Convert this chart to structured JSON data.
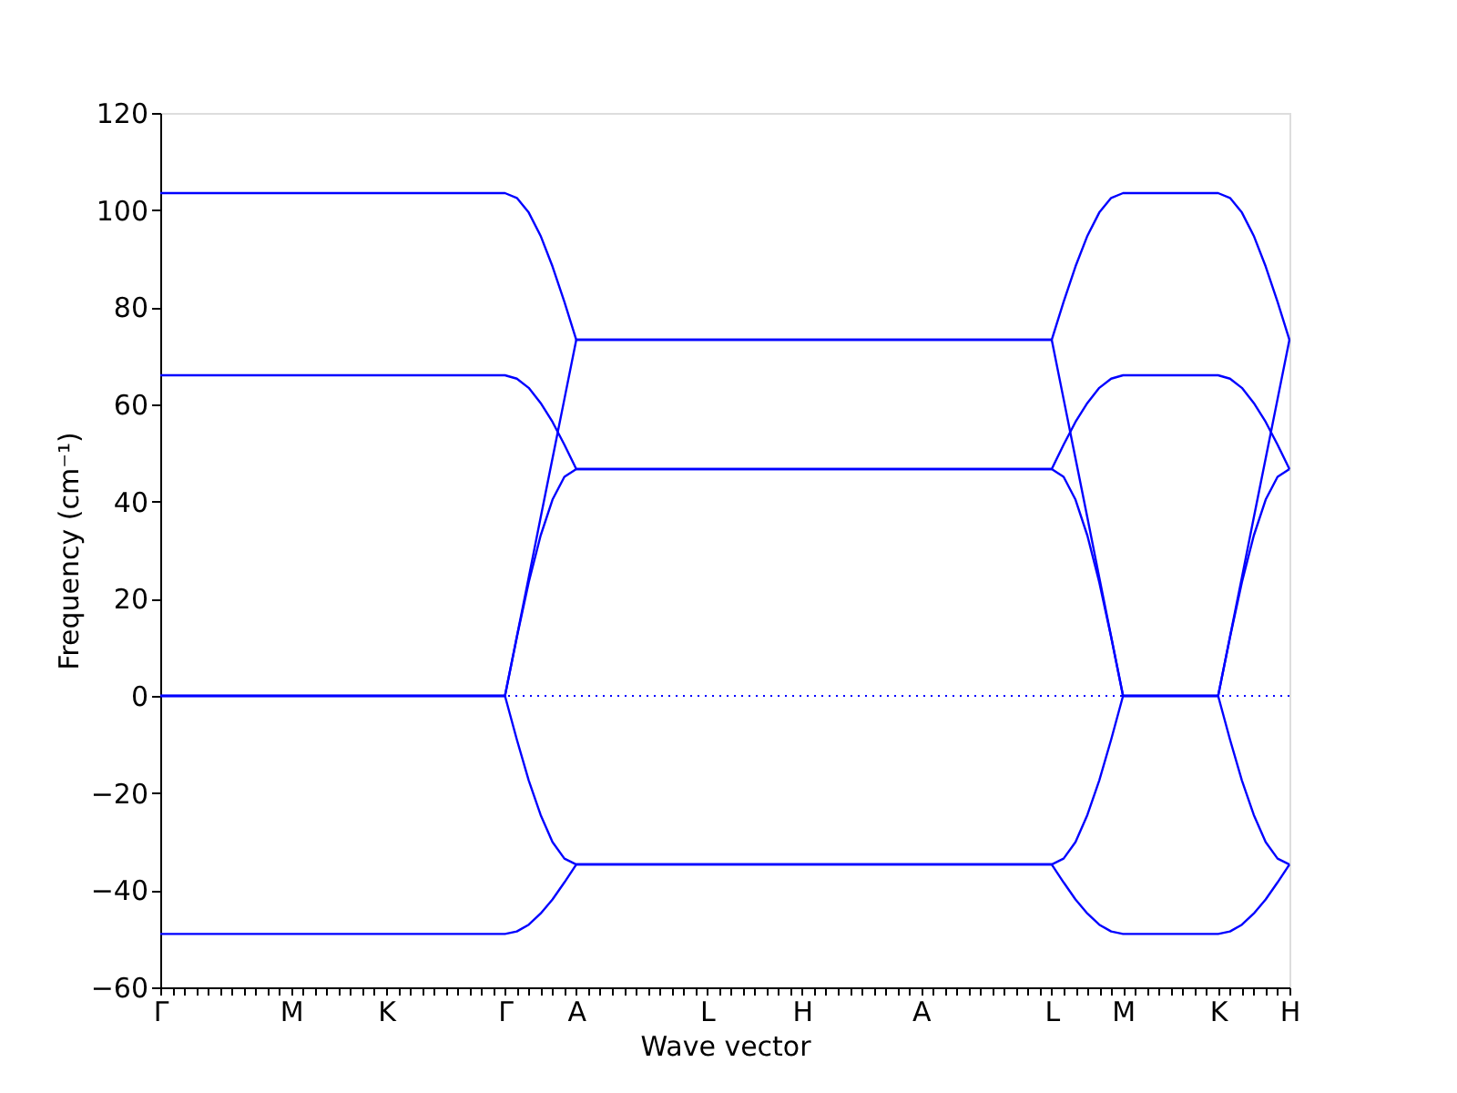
{
  "chart_data": {
    "type": "line",
    "xlabel": "Wave vector",
    "ylabel": "Frequency (cm⁻¹)",
    "ylim": [
      -60,
      120
    ],
    "yticks": [
      -60,
      -40,
      -20,
      0,
      20,
      40,
      60,
      80,
      100,
      120
    ],
    "categories": [
      "Γ",
      null,
      null,
      null,
      null,
      null,
      null,
      null,
      null,
      null,
      null,
      "M",
      null,
      null,
      null,
      null,
      null,
      null,
      null,
      "K",
      null,
      null,
      null,
      null,
      null,
      null,
      null,
      null,
      null,
      "Γ",
      null,
      null,
      null,
      null,
      null,
      "A",
      null,
      null,
      null,
      null,
      null,
      null,
      null,
      null,
      null,
      null,
      "L",
      null,
      null,
      null,
      null,
      null,
      null,
      null,
      "H",
      null,
      null,
      null,
      null,
      null,
      null,
      null,
      null,
      null,
      "A",
      null,
      null,
      null,
      null,
      null,
      null,
      null,
      null,
      null,
      null,
      "L",
      null,
      null,
      null,
      null,
      null,
      "M",
      null,
      null,
      null,
      null,
      null,
      null,
      null,
      "K",
      null,
      null,
      null,
      null,
      null,
      "H"
    ],
    "series": [
      {
        "color": "#0000ff",
        "values": [
          103.5,
          103.5,
          103.5,
          103.5,
          103.5,
          103.5,
          103.5,
          103.5,
          103.5,
          103.5,
          103.5,
          103.5,
          103.5,
          103.5,
          103.5,
          103.5,
          103.5,
          103.5,
          103.5,
          103.5,
          103.5,
          103.5,
          103.5,
          103.5,
          103.5,
          103.5,
          103.5,
          103.5,
          103.5,
          103.5,
          102.5,
          99.5,
          94.7,
          88.4,
          81.1,
          73.3,
          73.3,
          73.3,
          73.3,
          73.3,
          73.3,
          73.3,
          73.3,
          73.3,
          73.3,
          73.3,
          73.3,
          73.3,
          73.3,
          73.3,
          73.3,
          73.3,
          73.3,
          73.3,
          73.3,
          73.3,
          73.3,
          73.3,
          73.3,
          73.3,
          73.3,
          73.3,
          73.3,
          73.3,
          73.3,
          73.3,
          73.3,
          73.3,
          73.3,
          73.3,
          73.3,
          73.3,
          73.3,
          73.3,
          73.3,
          73.3,
          81.1,
          88.4,
          94.7,
          99.5,
          102.5,
          103.5,
          103.5,
          103.5,
          103.5,
          103.5,
          103.5,
          103.5,
          103.5,
          103.5,
          102.5,
          99.5,
          94.7,
          88.4,
          81.1,
          73.3
        ]
      },
      {
        "color": "#0000ff",
        "values": [
          66,
          66,
          66,
          66,
          66,
          66,
          66,
          66,
          66,
          66,
          66,
          66,
          66,
          66,
          66,
          66,
          66,
          66,
          66,
          66,
          66,
          66,
          66,
          66,
          66,
          66,
          66,
          66,
          66,
          66,
          65.3,
          63.4,
          60.3,
          56.4,
          51.7,
          46.7,
          46.7,
          46.7,
          46.7,
          46.7,
          46.7,
          46.7,
          46.7,
          46.7,
          46.7,
          46.7,
          46.7,
          46.7,
          46.7,
          46.7,
          46.7,
          46.7,
          46.7,
          46.7,
          46.7,
          46.7,
          46.7,
          46.7,
          46.7,
          46.7,
          46.7,
          46.7,
          46.7,
          46.7,
          46.7,
          46.7,
          46.7,
          46.7,
          46.7,
          46.7,
          46.7,
          46.7,
          46.7,
          46.7,
          46.7,
          46.7,
          51.7,
          56.4,
          60.3,
          63.4,
          65.3,
          66,
          66,
          66,
          66,
          66,
          66,
          66,
          66,
          66,
          65.3,
          63.4,
          60.3,
          56.4,
          51.7,
          46.7
        ]
      },
      {
        "color": "#0000ff",
        "values": [
          0,
          0,
          0,
          0,
          0,
          0,
          0,
          0,
          0,
          0,
          0,
          0,
          0,
          0,
          0,
          0,
          0,
          0,
          0,
          0,
          0,
          0,
          0,
          0,
          0,
          0,
          0,
          0,
          0,
          0,
          12.2,
          24.4,
          36.7,
          48.9,
          61.1,
          73.3,
          73.3,
          73.3,
          73.3,
          73.3,
          73.3,
          73.3,
          73.3,
          73.3,
          73.3,
          73.3,
          73.3,
          73.3,
          73.3,
          73.3,
          73.3,
          73.3,
          73.3,
          73.3,
          73.3,
          73.3,
          73.3,
          73.3,
          73.3,
          73.3,
          73.3,
          73.3,
          73.3,
          73.3,
          73.3,
          73.3,
          73.3,
          73.3,
          73.3,
          73.3,
          73.3,
          73.3,
          73.3,
          73.3,
          73.3,
          73.3,
          61.1,
          48.9,
          36.7,
          24.4,
          12.2,
          0,
          0,
          0,
          0,
          0,
          0,
          0,
          0,
          0,
          12.2,
          24.4,
          36.7,
          48.9,
          61.1,
          73.3
        ]
      },
      {
        "color": "#0000ff",
        "values": [
          0,
          0,
          0,
          0,
          0,
          0,
          0,
          0,
          0,
          0,
          0,
          0,
          0,
          0,
          0,
          0,
          0,
          0,
          0,
          0,
          0,
          0,
          0,
          0,
          0,
          0,
          0,
          0,
          0,
          0,
          12.1,
          23.4,
          33.0,
          40.4,
          45.1,
          46.7,
          46.7,
          46.7,
          46.7,
          46.7,
          46.7,
          46.7,
          46.7,
          46.7,
          46.7,
          46.7,
          46.7,
          46.7,
          46.7,
          46.7,
          46.7,
          46.7,
          46.7,
          46.7,
          46.7,
          46.7,
          46.7,
          46.7,
          46.7,
          46.7,
          46.7,
          46.7,
          46.7,
          46.7,
          46.7,
          46.7,
          46.7,
          46.7,
          46.7,
          46.7,
          46.7,
          46.7,
          46.7,
          46.7,
          46.7,
          46.7,
          45.1,
          40.4,
          33.0,
          23.4,
          12.1,
          0,
          0,
          0,
          0,
          0,
          0,
          0,
          0,
          0,
          12.1,
          23.4,
          33.0,
          40.4,
          45.1,
          46.7
        ]
      },
      {
        "color": "#0000ff",
        "values": [
          0,
          0,
          0,
          0,
          0,
          0,
          0,
          0,
          0,
          0,
          0,
          0,
          0,
          0,
          0,
          0,
          0,
          0,
          0,
          0,
          0,
          0,
          0,
          0,
          0,
          0,
          0,
          0,
          0,
          0,
          -9.0,
          -17.4,
          -24.5,
          -30.1,
          -33.5,
          -34.7,
          -34.7,
          -34.7,
          -34.7,
          -34.7,
          -34.7,
          -34.7,
          -34.7,
          -34.7,
          -34.7,
          -34.7,
          -34.7,
          -34.7,
          -34.7,
          -34.7,
          -34.7,
          -34.7,
          -34.7,
          -34.7,
          -34.7,
          -34.7,
          -34.7,
          -34.7,
          -34.7,
          -34.7,
          -34.7,
          -34.7,
          -34.7,
          -34.7,
          -34.7,
          -34.7,
          -34.7,
          -34.7,
          -34.7,
          -34.7,
          -34.7,
          -34.7,
          -34.7,
          -34.7,
          -34.7,
          -34.7,
          -33.5,
          -30.1,
          -24.5,
          -17.4,
          -9.0,
          0,
          0,
          0,
          0,
          0,
          0,
          0,
          0,
          0,
          -9.0,
          -17.4,
          -24.5,
          -30.1,
          -33.5,
          -34.7
        ]
      },
      {
        "color": "#0000ff",
        "values": [
          -49,
          -49,
          -49,
          -49,
          -49,
          -49,
          -49,
          -49,
          -49,
          -49,
          -49,
          -49,
          -49,
          -49,
          -49,
          -49,
          -49,
          -49,
          -49,
          -49,
          -49,
          -49,
          -49,
          -49,
          -49,
          -49,
          -49,
          -49,
          -49,
          -49,
          -48.5,
          -47.1,
          -44.8,
          -41.9,
          -38.4,
          -34.7,
          -34.7,
          -34.7,
          -34.7,
          -34.7,
          -34.7,
          -34.7,
          -34.7,
          -34.7,
          -34.7,
          -34.7,
          -34.7,
          -34.7,
          -34.7,
          -34.7,
          -34.7,
          -34.7,
          -34.7,
          -34.7,
          -34.7,
          -34.7,
          -34.7,
          -34.7,
          -34.7,
          -34.7,
          -34.7,
          -34.7,
          -34.7,
          -34.7,
          -34.7,
          -34.7,
          -34.7,
          -34.7,
          -34.7,
          -34.7,
          -34.7,
          -34.7,
          -34.7,
          -34.7,
          -34.7,
          -34.7,
          -38.4,
          -41.9,
          -44.8,
          -47.1,
          -48.5,
          -49,
          -49,
          -49,
          -49,
          -49,
          -49,
          -49,
          -49,
          -49,
          -48.5,
          -47.1,
          -44.8,
          -41.9,
          -38.4,
          -34.7
        ]
      }
    ],
    "ref_lines": [
      {
        "axis": "y",
        "value": 0,
        "color": "#0000ff",
        "line_style": "dotted"
      }
    ],
    "grid": false,
    "legend": false,
    "marker": "none",
    "line_style": "solid"
  }
}
